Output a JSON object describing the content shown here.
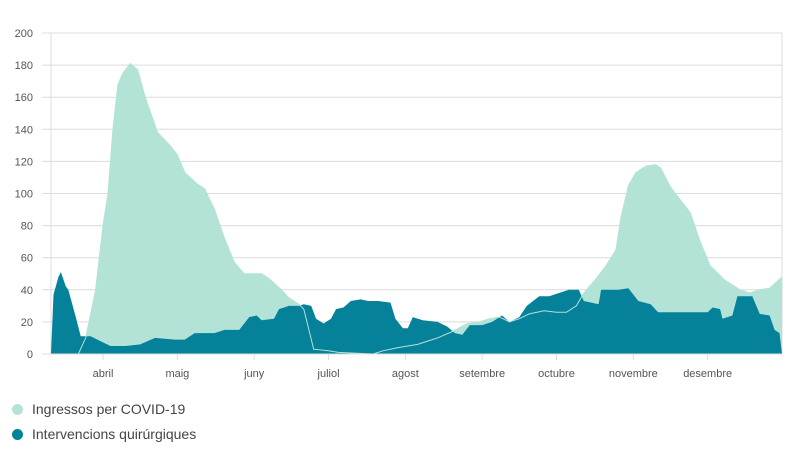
{
  "chart_data": {
    "type": "area",
    "title": "",
    "xlabel": "",
    "ylabel": "",
    "ylim": [
      0,
      200
    ],
    "yticks": [
      0,
      20,
      40,
      60,
      80,
      100,
      120,
      140,
      160,
      180,
      200
    ],
    "xlim": [
      "03-11",
      "12-31"
    ],
    "xticks": [
      {
        "date": "04-01",
        "label": "abril"
      },
      {
        "date": "05-01",
        "label": "maig"
      },
      {
        "date": "06-01",
        "label": "juny"
      },
      {
        "date": "07-01",
        "label": "juliol"
      },
      {
        "date": "08-01",
        "label": "agost"
      },
      {
        "date": "09-01",
        "label": "setembre"
      },
      {
        "date": "10-01",
        "label": "octubre"
      },
      {
        "date": "11-01",
        "label": "novembre"
      },
      {
        "date": "12-01",
        "label": "desembre"
      }
    ],
    "grid": true,
    "legend": "bottom-left",
    "series": [
      {
        "name": "Ingressos per COVID-19",
        "color": "#b3e3d7",
        "points": [
          [
            "03-11",
            0
          ],
          [
            "03-22",
            0
          ],
          [
            "03-25",
            10
          ],
          [
            "03-29",
            40
          ],
          [
            "04-01",
            80
          ],
          [
            "04-03",
            100
          ],
          [
            "04-05",
            140
          ],
          [
            "04-07",
            168
          ],
          [
            "04-09",
            175
          ],
          [
            "04-12",
            181
          ],
          [
            "04-15",
            177
          ],
          [
            "04-18",
            160
          ],
          [
            "04-23",
            138
          ],
          [
            "04-28",
            130
          ],
          [
            "05-01",
            124
          ],
          [
            "05-04",
            113
          ],
          [
            "05-09",
            106
          ],
          [
            "05-12",
            103
          ],
          [
            "05-16",
            90
          ],
          [
            "05-20",
            72
          ],
          [
            "05-24",
            57
          ],
          [
            "05-28",
            50
          ],
          [
            "06-04",
            50
          ],
          [
            "06-07",
            47
          ],
          [
            "06-12",
            40
          ],
          [
            "06-15",
            35
          ],
          [
            "06-19",
            31
          ],
          [
            "06-21",
            28
          ],
          [
            "06-25",
            3
          ],
          [
            "07-01",
            2
          ],
          [
            "07-05",
            1
          ],
          [
            "07-19",
            0
          ],
          [
            "07-23",
            2
          ],
          [
            "07-29",
            4
          ],
          [
            "08-06",
            6
          ],
          [
            "08-14",
            10
          ],
          [
            "08-20",
            14
          ],
          [
            "08-26",
            19
          ],
          [
            "08-31",
            20
          ],
          [
            "09-04",
            22
          ],
          [
            "09-08",
            23
          ],
          [
            "09-12",
            20
          ],
          [
            "09-16",
            22
          ],
          [
            "09-20",
            25
          ],
          [
            "09-26",
            27
          ],
          [
            "10-01",
            26
          ],
          [
            "10-05",
            26
          ],
          [
            "10-09",
            30
          ],
          [
            "10-12",
            38
          ],
          [
            "10-17",
            47
          ],
          [
            "10-21",
            55
          ],
          [
            "10-25",
            65
          ],
          [
            "10-27",
            85
          ],
          [
            "10-30",
            105
          ],
          [
            "11-02",
            113
          ],
          [
            "11-06",
            117
          ],
          [
            "11-10",
            118
          ],
          [
            "11-12",
            116
          ],
          [
            "11-16",
            104
          ],
          [
            "11-20",
            96
          ],
          [
            "11-24",
            88
          ],
          [
            "11-28",
            70
          ],
          [
            "12-02",
            55
          ],
          [
            "12-08",
            46
          ],
          [
            "12-14",
            40
          ],
          [
            "12-18",
            38
          ],
          [
            "12-22",
            40
          ],
          [
            "12-26",
            41
          ],
          [
            "12-31",
            48
          ]
        ]
      },
      {
        "name": "Intervencions quirúrgiques",
        "color": "#05819a",
        "points": [
          [
            "03-11",
            0
          ],
          [
            "03-12",
            37
          ],
          [
            "03-14",
            48
          ],
          [
            "03-15",
            51
          ],
          [
            "03-17",
            42
          ],
          [
            "03-18",
            40
          ],
          [
            "03-21",
            23
          ],
          [
            "03-23",
            11
          ],
          [
            "03-27",
            11
          ],
          [
            "03-31",
            8
          ],
          [
            "04-04",
            5
          ],
          [
            "04-10",
            5
          ],
          [
            "04-16",
            6
          ],
          [
            "04-22",
            10
          ],
          [
            "04-30",
            9
          ],
          [
            "05-04",
            9
          ],
          [
            "05-08",
            13
          ],
          [
            "05-16",
            13
          ],
          [
            "05-20",
            15
          ],
          [
            "05-26",
            15
          ],
          [
            "05-30",
            23
          ],
          [
            "06-02",
            24
          ],
          [
            "06-04",
            21
          ],
          [
            "06-09",
            22
          ],
          [
            "06-11",
            28
          ],
          [
            "06-15",
            30
          ],
          [
            "06-19",
            30
          ],
          [
            "06-21",
            31
          ],
          [
            "06-24",
            30
          ],
          [
            "06-26",
            22
          ],
          [
            "06-29",
            19
          ],
          [
            "07-02",
            22
          ],
          [
            "07-04",
            28
          ],
          [
            "07-07",
            29
          ],
          [
            "07-10",
            33
          ],
          [
            "07-14",
            34
          ],
          [
            "07-17",
            33
          ],
          [
            "07-21",
            33
          ],
          [
            "07-26",
            32
          ],
          [
            "07-28",
            22
          ],
          [
            "07-31",
            16
          ],
          [
            "08-02",
            16
          ],
          [
            "08-04",
            23
          ],
          [
            "08-08",
            21
          ],
          [
            "08-14",
            20
          ],
          [
            "08-18",
            17
          ],
          [
            "08-21",
            13
          ],
          [
            "08-24",
            12
          ],
          [
            "08-27",
            18
          ],
          [
            "09-01",
            18
          ],
          [
            "09-05",
            20
          ],
          [
            "09-09",
            24
          ],
          [
            "09-12",
            20
          ],
          [
            "09-16",
            23
          ],
          [
            "09-19",
            30
          ],
          [
            "09-24",
            36
          ],
          [
            "09-28",
            36
          ],
          [
            "10-02",
            38
          ],
          [
            "10-06",
            40
          ],
          [
            "10-10",
            40
          ],
          [
            "10-12",
            33
          ],
          [
            "10-18",
            31
          ],
          [
            "10-19",
            40
          ],
          [
            "10-26",
            40
          ],
          [
            "10-30",
            41
          ],
          [
            "11-03",
            33
          ],
          [
            "11-08",
            31
          ],
          [
            "11-11",
            26
          ],
          [
            "11-19",
            26
          ],
          [
            "11-25",
            26
          ],
          [
            "12-01",
            26
          ],
          [
            "12-03",
            29
          ],
          [
            "12-06",
            28
          ],
          [
            "12-07",
            22
          ],
          [
            "12-11",
            24
          ],
          [
            "12-13",
            36
          ],
          [
            "12-19",
            36
          ],
          [
            "12-22",
            25
          ],
          [
            "12-26",
            24
          ],
          [
            "12-28",
            15
          ],
          [
            "12-30",
            13
          ],
          [
            "12-31",
            0
          ]
        ]
      }
    ]
  }
}
